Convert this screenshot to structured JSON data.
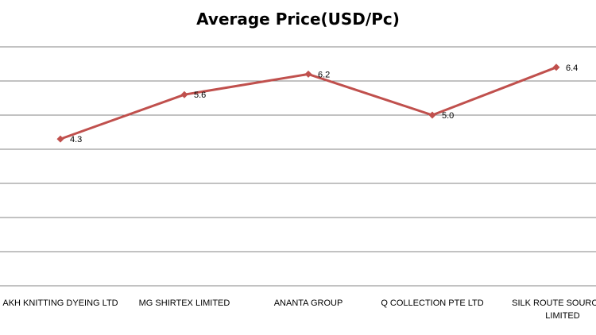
{
  "chart_data": {
    "type": "line",
    "title": "Average Price(USD/Pc)",
    "xlabel": "",
    "ylabel": "",
    "categories": [
      "AKH KNITTING  DYEING  LTD",
      "MG SHIRTEX  LIMITED",
      "ANANTA GROUP",
      "Q COLLECTION  PTE  LTD",
      "SILK ROUTE  SOURCING LIMITED"
    ],
    "series": [
      {
        "values": [
          4.3,
          5.6,
          6.2,
          5.0,
          6.4
        ],
        "labels": [
          "4.3",
          "5.6",
          "6.2",
          "5.0",
          "6.4"
        ]
      }
    ],
    "ylim": [
      0,
      7
    ],
    "grid": true,
    "legend": "none",
    "colors": {
      "line": "#C0504D",
      "grid": "#868686"
    }
  }
}
